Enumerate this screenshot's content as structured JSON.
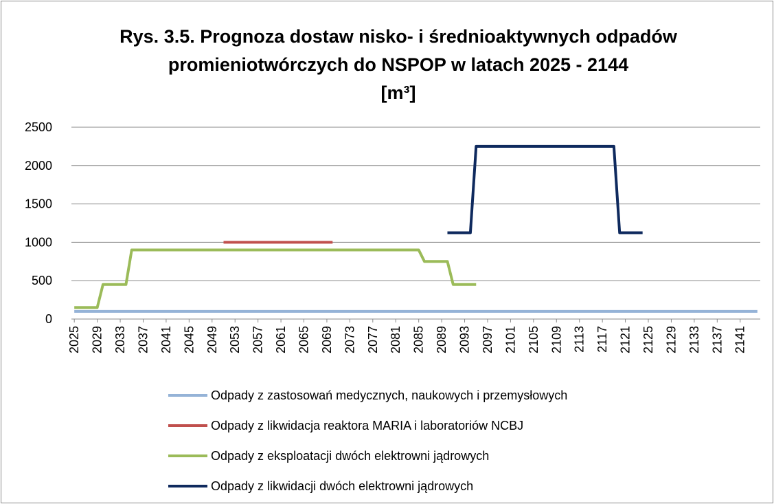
{
  "chart_data": {
    "type": "line",
    "title": [
      "Rys. 3.5. Prognoza dostaw nisko- i średnioaktywnych odpadów",
      "promieniotwórczych do NSPOP w latach 2025 - 2144",
      "[m³]"
    ],
    "xlim": [
      2024.5,
      2144.5
    ],
    "xticks": [
      2025,
      2029,
      2033,
      2037,
      2041,
      2045,
      2049,
      2053,
      2057,
      2061,
      2065,
      2069,
      2073,
      2077,
      2081,
      2085,
      2089,
      2093,
      2097,
      2101,
      2105,
      2109,
      2113,
      2117,
      2121,
      2125,
      2129,
      2133,
      2137,
      2141
    ],
    "ylim": [
      0,
      2500
    ],
    "yticks": [
      0,
      500,
      1000,
      1500,
      2000,
      2500
    ],
    "grid": true,
    "legend": "bottom",
    "series": [
      {
        "name": "Odpady z zastosowań medycznych, naukowych i przemysłowych",
        "color": "#95b3d7",
        "x": [
          2025,
          2144
        ],
        "values": [
          100,
          100
        ]
      },
      {
        "name": "Odpady z likwidacja reaktora MARIA i laboratoriów NCBJ",
        "color": "#c0504d",
        "x": [
          2051,
          2070
        ],
        "values": [
          1000,
          1000
        ]
      },
      {
        "name": "Odpady z eksploatacji dwóch elektrowni jądrowych",
        "color": "#9bbb59",
        "x": [
          2025,
          2029,
          2030,
          2034,
          2035,
          2085,
          2086,
          2090,
          2091,
          2095
        ],
        "values": [
          150,
          150,
          450,
          450,
          900,
          900,
          750,
          750,
          450,
          450
        ]
      },
      {
        "name": "Odpady z likwidacji dwóch elektrowni jądrowych",
        "color": "#0f2a5e",
        "x": [
          2090,
          2094,
          2095,
          2119,
          2120,
          2124
        ],
        "values": [
          1125,
          1125,
          2250,
          2250,
          1125,
          1125
        ]
      }
    ]
  }
}
